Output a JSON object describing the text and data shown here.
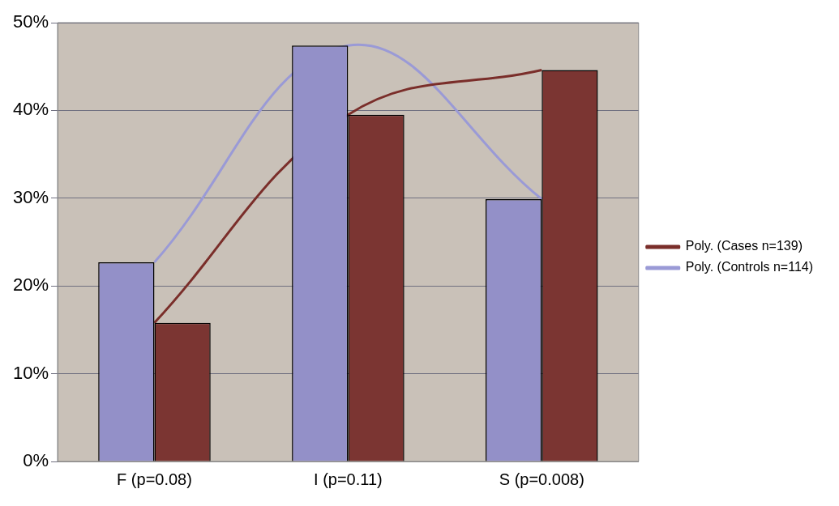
{
  "chart_data": {
    "type": "bar",
    "categories": [
      "F (p=0.08)",
      "I (p=0.11)",
      "S (p=0.008)"
    ],
    "series": [
      {
        "color": "#9390c8",
        "values": [
          22.7,
          47.4,
          29.9
        ]
      },
      {
        "color": "#7b3532",
        "values": [
          15.8,
          39.5,
          44.6
        ]
      },
      {
        "type": "line",
        "name": "Poly. (Cases n=139)",
        "color": "#7a2e2a",
        "x": [
          "F (p=0.08)",
          "I (p=0.11)",
          "S (p=0.008)"
        ],
        "values": [
          15.8,
          39.5,
          44.6
        ]
      },
      {
        "type": "line",
        "name": "Poly. (Controls n=114)",
        "color": "#9a9ad6",
        "x": [
          "F (p=0.08)",
          "I (p=0.11)",
          "S (p=0.008)"
        ],
        "values": [
          22.7,
          47.4,
          29.9
        ]
      }
    ],
    "ylim": [
      0,
      50
    ],
    "yticks": [
      {
        "value": 0,
        "label": "0%"
      },
      {
        "value": 10,
        "label": "10%"
      },
      {
        "value": 20,
        "label": "20%"
      },
      {
        "value": 30,
        "label": "30%"
      },
      {
        "value": 40,
        "label": "40%"
      },
      {
        "value": 50,
        "label": "50%"
      }
    ],
    "grid": "y",
    "legend": "right",
    "marker": "none"
  }
}
